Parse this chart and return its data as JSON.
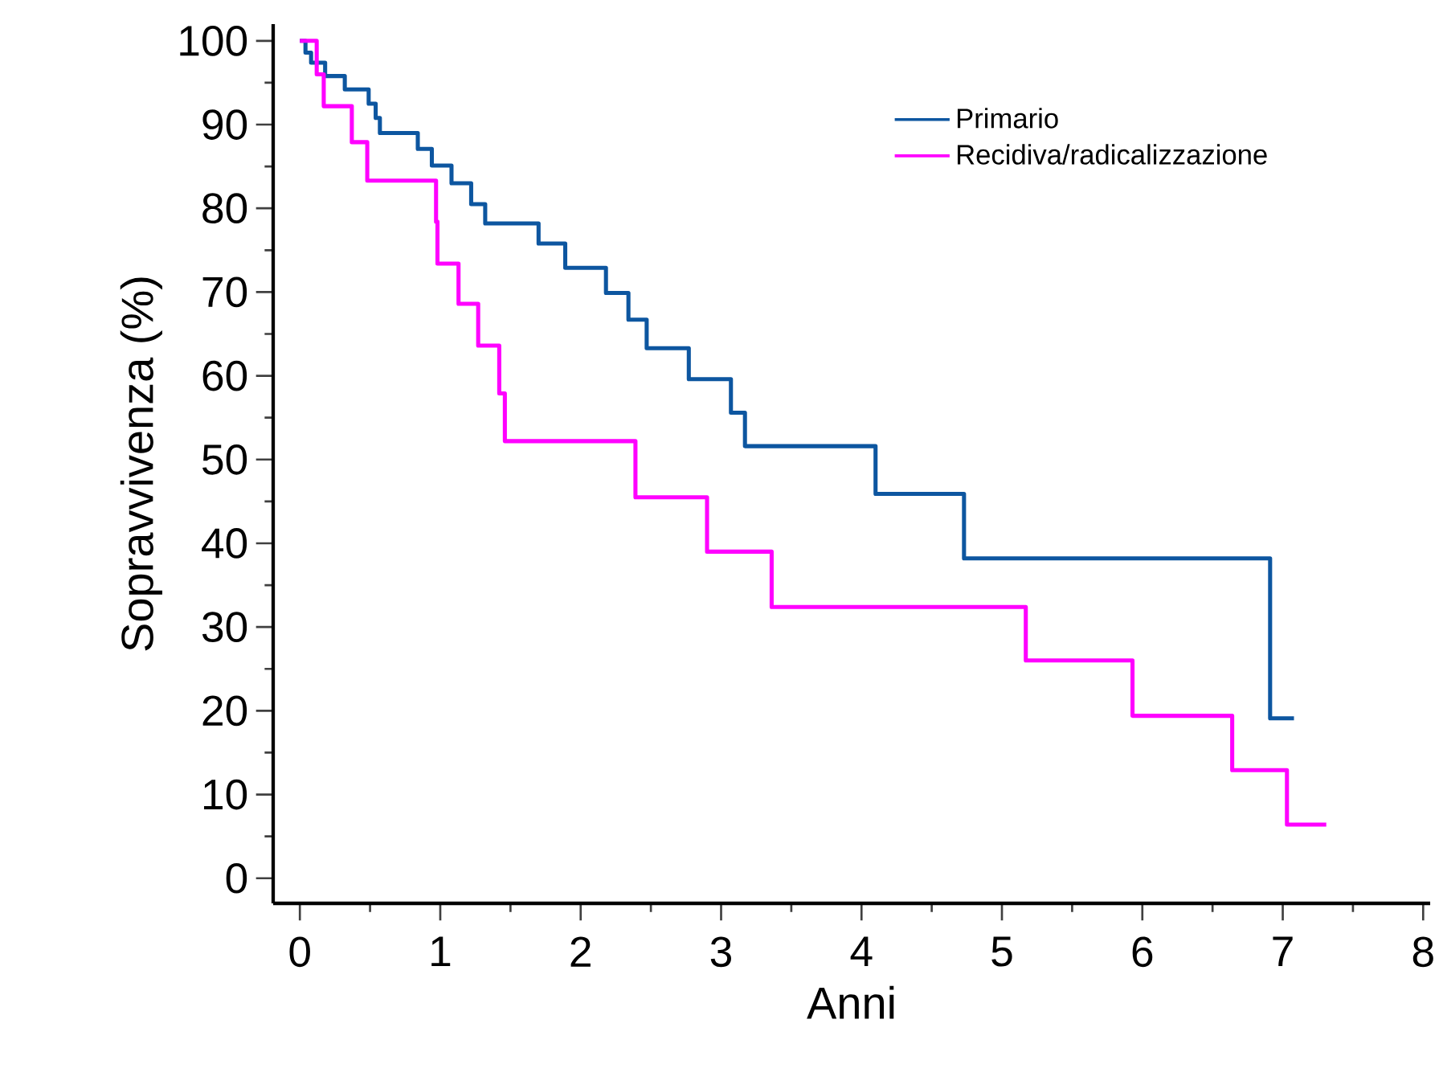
{
  "chart_data": {
    "type": "step",
    "xlabel": "Anni",
    "ylabel": "Sopravvivenza (%)",
    "xlim": [
      -0.19,
      8.05
    ],
    "ylim": [
      -3,
      102
    ],
    "xticks": [
      0,
      1,
      2,
      3,
      4,
      5,
      6,
      7,
      8
    ],
    "yticks": [
      0,
      10,
      20,
      30,
      40,
      50,
      60,
      70,
      80,
      90,
      100
    ],
    "legend": "top right",
    "grid": false,
    "marker": "none",
    "line_style": "solid",
    "series": [
      {
        "name": "Primario",
        "color": "#0d56a0",
        "x": [
          0,
          0.04,
          0.08,
          0.18,
          0.32,
          0.49,
          0.54,
          0.57,
          0.84,
          0.94,
          1.08,
          1.22,
          1.32,
          1.7,
          1.89,
          2.18,
          2.34,
          2.47,
          2.77,
          3.07,
          3.17,
          4.1,
          4.73,
          6.91,
          7.08
        ],
        "values": [
          100,
          98.6,
          97.4,
          95.8,
          94.2,
          92.5,
          90.8,
          89,
          87.1,
          85.1,
          83,
          80.5,
          78.2,
          75.8,
          72.9,
          69.9,
          66.7,
          63.3,
          59.6,
          55.6,
          51.6,
          45.9,
          38.2,
          19.1,
          19.1
        ]
      },
      {
        "name": "Recidiva/radicalizzazione",
        "color": "#ff00ff",
        "x": [
          0,
          0.12,
          0.17,
          0.37,
          0.48,
          0.97,
          0.98,
          1.13,
          1.27,
          1.42,
          1.46,
          2.39,
          2.9,
          3.36,
          5.17,
          5.93,
          6.64,
          7.03,
          7.31
        ],
        "values": [
          100,
          96,
          92.2,
          87.9,
          83.3,
          78.4,
          73.4,
          68.6,
          63.6,
          57.9,
          52.2,
          45.5,
          39,
          32.4,
          26,
          19.4,
          12.9,
          6.4,
          6.4
        ]
      }
    ]
  }
}
